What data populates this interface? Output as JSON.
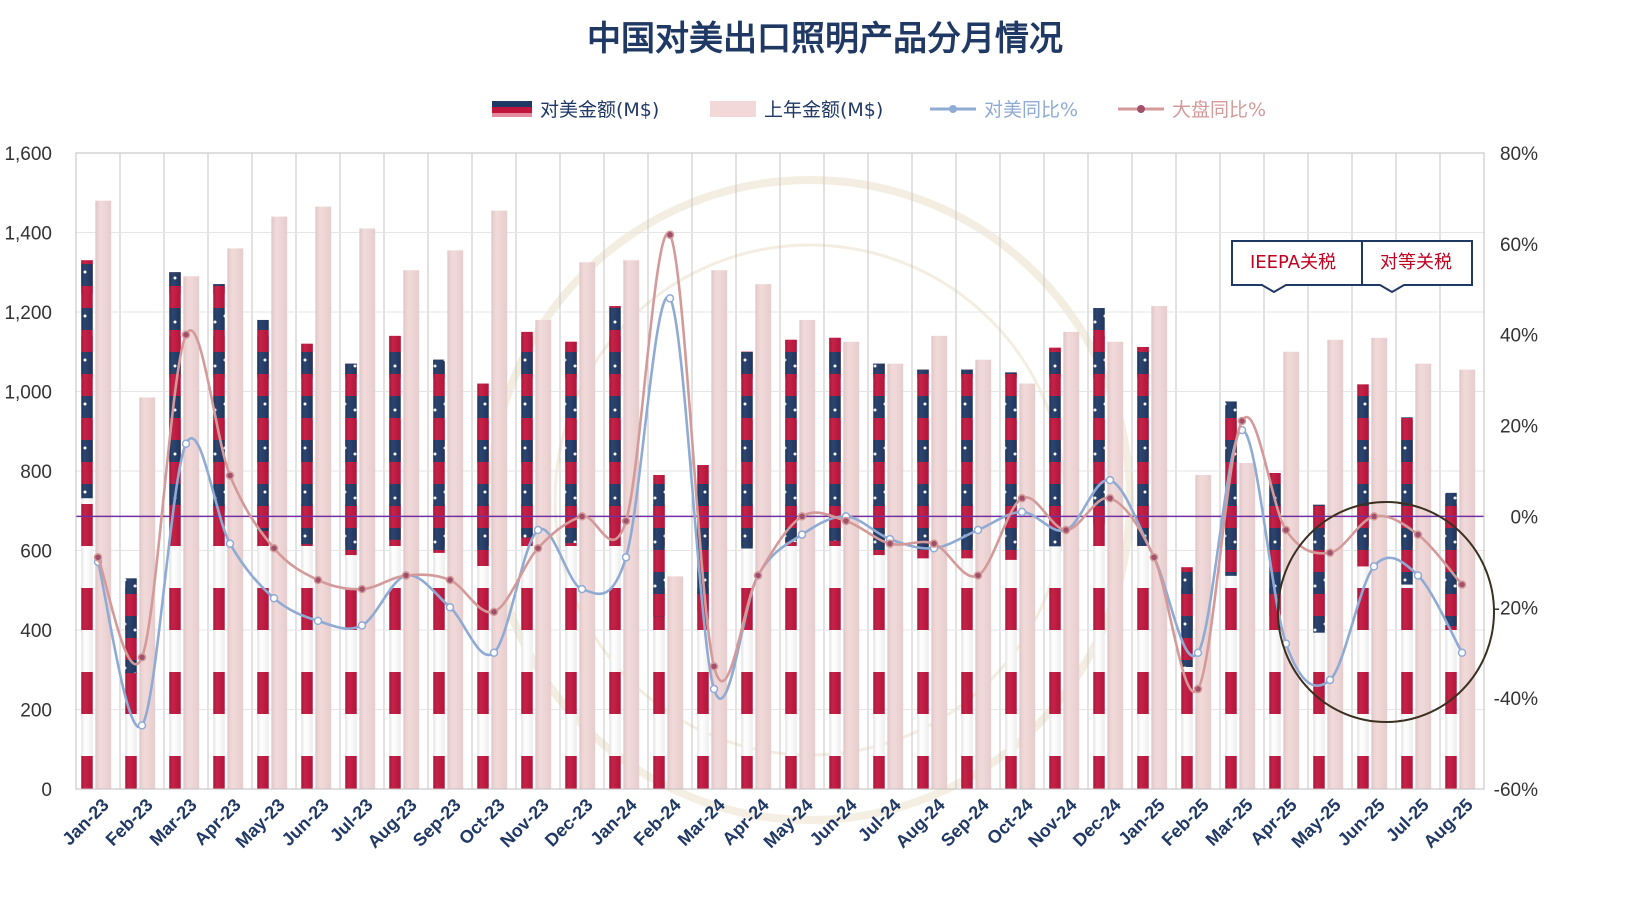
{
  "chart_data": {
    "type": "bar",
    "title": "中国对美出口照明产品分月情况",
    "categories": [
      "Jan-23",
      "Feb-23",
      "Mar-23",
      "Apr-23",
      "May-23",
      "Jun-23",
      "Jul-23",
      "Aug-23",
      "Sep-23",
      "Oct-23",
      "Nov-23",
      "Dec-23",
      "Jan-24",
      "Feb-24",
      "Mar-24",
      "Apr-24",
      "May-24",
      "Jun-24",
      "Jul-24",
      "Aug-24",
      "Sep-24",
      "Oct-24",
      "Nov-24",
      "Dec-24",
      "Jan-25",
      "Feb-25",
      "Mar-25",
      "Apr-25",
      "May-25",
      "Jun-25",
      "Jul-25",
      "Aug-25"
    ],
    "series": [
      {
        "name": "对美金额(M$)",
        "axis": "left",
        "type": "bar",
        "color": "#c0143c",
        "values": [
          1330,
          530,
          1300,
          1270,
          1180,
          1120,
          1070,
          1140,
          1080,
          1020,
          1150,
          1125,
          1215,
          790,
          815,
          1100,
          1130,
          1135,
          1070,
          1055,
          1055,
          1048,
          1110,
          1210,
          1112,
          558,
          975,
          795,
          715,
          1018,
          935,
          745
        ]
      },
      {
        "name": "上年金额(M$)",
        "axis": "left",
        "type": "bar",
        "color": "#f2d8d8",
        "values": [
          1480,
          985,
          1290,
          1360,
          1440,
          1465,
          1410,
          1305,
          1355,
          1455,
          1180,
          1325,
          1330,
          535,
          1305,
          1270,
          1180,
          1125,
          1070,
          1140,
          1080,
          1020,
          1150,
          1125,
          1215,
          790,
          820,
          1100,
          1130,
          1135,
          1070,
          1055
        ]
      },
      {
        "name": "对美同比%",
        "axis": "right",
        "type": "line",
        "color": "#8fabd4",
        "values": [
          -10,
          -46,
          16,
          -6,
          -18,
          -23,
          -24,
          -13,
          -20,
          -30,
          -3,
          -16,
          -9,
          48,
          -38,
          -13,
          -4,
          0,
          -5,
          -7,
          -3,
          1,
          -3,
          8,
          -9,
          -30,
          19,
          -28,
          -36,
          -11,
          -13,
          -30
        ]
      },
      {
        "name": "大盘同比%",
        "axis": "right",
        "type": "line",
        "color": "#d49a9a",
        "values": [
          -9,
          -31,
          40,
          9,
          -7,
          -14,
          -16,
          -13,
          -14,
          -21,
          -7,
          0,
          -1,
          62,
          -33,
          -13,
          0,
          -1,
          -6,
          -6,
          -13,
          4,
          -3,
          4,
          -9,
          -38,
          21,
          -3,
          -8,
          0,
          -4,
          -15
        ]
      }
    ],
    "y_left": {
      "min": 0,
      "max": 1600,
      "ticks": [
        "0",
        "200",
        "400",
        "600",
        "800",
        "1,000",
        "1,200",
        "1,400",
        "1,600"
      ]
    },
    "y_right": {
      "min": -60,
      "max": 80,
      "ticks": [
        "-60%",
        "-40%",
        "-20%",
        "0%",
        "20%",
        "40%",
        "60%",
        "80%"
      ]
    },
    "grid": true,
    "legend_position": "top",
    "annotations": [
      {
        "text": "IEEPA关税",
        "color": "#c00020"
      },
      {
        "text": "对等关税",
        "color": "#c00020"
      }
    ],
    "colors": {
      "navy": "#1f3864",
      "red": "#c0143c",
      "zero_line": "#7030a0"
    }
  }
}
